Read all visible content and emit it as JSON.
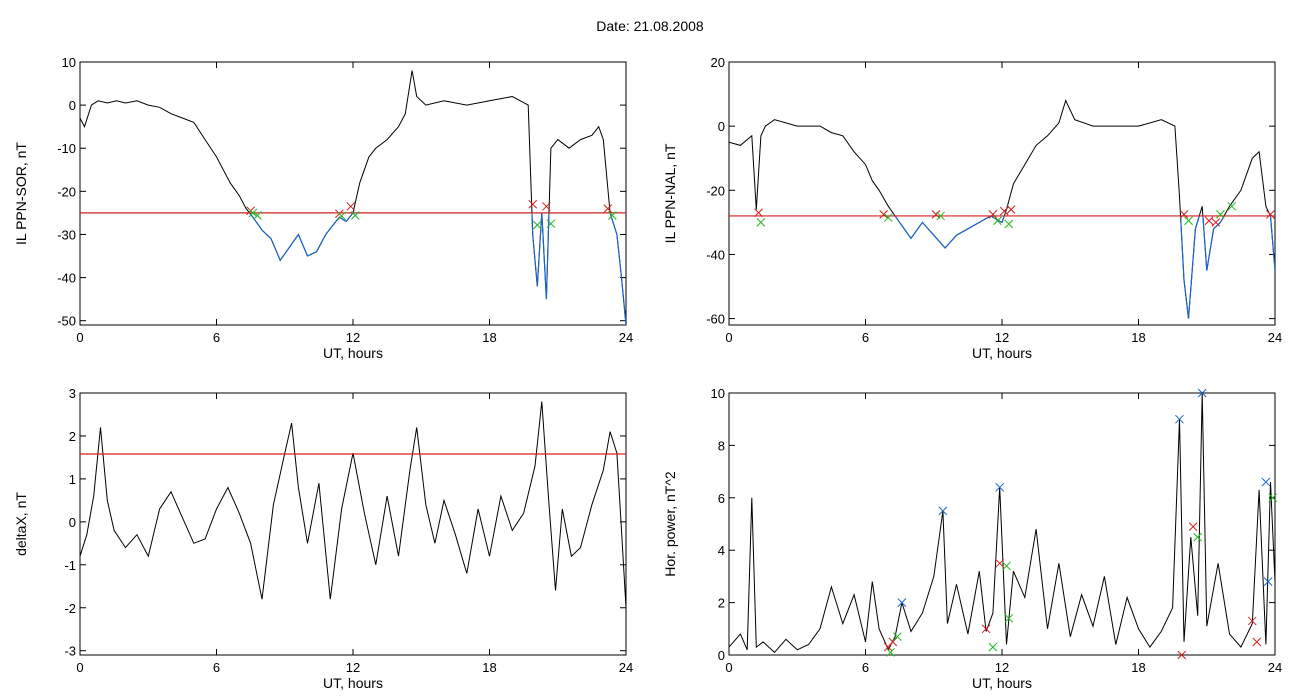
{
  "header": {
    "title": "Date:  21.08.2008"
  },
  "chart_data": [
    {
      "type": "line",
      "xlabel": "UT, hours",
      "ylabel": "IL PPN-SOR, nT",
      "xlim": [
        0,
        24
      ],
      "ylim": [
        -51,
        10
      ],
      "xticks": [
        0,
        6,
        12,
        18,
        24
      ],
      "yticks": [
        10,
        0,
        -10,
        -20,
        -30,
        -40,
        -50
      ],
      "threshold": -25,
      "colors": {
        "line": "#000000",
        "below": "#1a64c8",
        "threshold": "#d42020"
      },
      "x": [
        0,
        0.2,
        0.5,
        0.8,
        1.2,
        1.6,
        2,
        2.5,
        3,
        3.5,
        4,
        4.5,
        5,
        5.5,
        6,
        6.3,
        6.6,
        7,
        7.3,
        7.6,
        8,
        8.4,
        8.8,
        9.2,
        9.6,
        10,
        10.4,
        10.8,
        11.1,
        11.4,
        11.7,
        12,
        12.3,
        12.7,
        13,
        13.5,
        14,
        14.3,
        14.6,
        14.8,
        15.2,
        16,
        17,
        18,
        19,
        19.7,
        19.9,
        20.1,
        20.3,
        20.5,
        20.7,
        21,
        21.5,
        22,
        22.5,
        22.8,
        23,
        23.3,
        23.6,
        23.8,
        24
      ],
      "y": [
        -3,
        -5,
        0,
        1,
        0.5,
        1,
        0.5,
        1,
        0,
        -0.5,
        -2,
        -3,
        -4,
        -8,
        -12,
        -15,
        -18,
        -21,
        -24,
        -26,
        -29,
        -31,
        -36,
        -33,
        -30,
        -35,
        -34,
        -30,
        -28,
        -26,
        -27,
        -25,
        -18,
        -12,
        -10,
        -8,
        -5,
        -2,
        8,
        2,
        0,
        1,
        0,
        1,
        2,
        0,
        -30,
        -42,
        -25,
        -45,
        -10,
        -8,
        -10,
        -8,
        -7,
        -5,
        -8,
        -25,
        -30,
        -40,
        -51
      ],
      "markers_red": [
        [
          7.5,
          -24.5
        ],
        [
          11.4,
          -25.2
        ],
        [
          11.9,
          -23.5
        ],
        [
          19.9,
          -23
        ],
        [
          20.5,
          -23.5
        ],
        [
          23.2,
          -24
        ]
      ],
      "markers_green": [
        [
          7.6,
          -25
        ],
        [
          7.8,
          -25.6
        ],
        [
          11.5,
          -25.7
        ],
        [
          12.1,
          -25.6
        ],
        [
          20.1,
          -27.8
        ],
        [
          20.7,
          -27.5
        ],
        [
          23.4,
          -25.6
        ]
      ]
    },
    {
      "type": "line",
      "xlabel": "UT, hours",
      "ylabel": "IL PPN-NAL, nT",
      "xlim": [
        0,
        24
      ],
      "ylim": [
        -62,
        20
      ],
      "xticks": [
        0,
        6,
        12,
        18,
        24
      ],
      "yticks": [
        20,
        0,
        -20,
        -40,
        -60
      ],
      "threshold": -28,
      "colors": {
        "line": "#000000",
        "below": "#1a64c8",
        "threshold": "#d42020"
      },
      "x": [
        0,
        0.5,
        1,
        1.2,
        1.4,
        1.6,
        2,
        3,
        4,
        4.5,
        5,
        5.5,
        6,
        6.3,
        6.6,
        7,
        7.5,
        8,
        8.5,
        9,
        9.5,
        10,
        10.5,
        11,
        11.5,
        12,
        12.2,
        12.5,
        13,
        13.5,
        14,
        14.5,
        14.8,
        15.2,
        16,
        17,
        18,
        19,
        19.6,
        19.8,
        20,
        20.2,
        20.5,
        20.8,
        21,
        21.3,
        21.6,
        22,
        22.5,
        23,
        23.3,
        23.6,
        23.8,
        24
      ],
      "y": [
        -5,
        -6,
        -3,
        -26,
        -3,
        0,
        2,
        0,
        0,
        -2,
        -3,
        -8,
        -12,
        -17,
        -20,
        -25,
        -30,
        -35,
        -30,
        -34,
        -38,
        -34,
        -32,
        -30,
        -28,
        -30,
        -26,
        -18,
        -12,
        -6,
        -3,
        1,
        8,
        2,
        0,
        0,
        0,
        2,
        0,
        -22,
        -48,
        -60,
        -32,
        -25,
        -45,
        -32,
        -30,
        -25,
        -20,
        -10,
        -8,
        -25,
        -28,
        -45
      ],
      "markers_red": [
        [
          1.3,
          -27
        ],
        [
          6.8,
          -27.5
        ],
        [
          9.1,
          -27.5
        ],
        [
          11.6,
          -27.5
        ],
        [
          12.1,
          -26.5
        ],
        [
          12.4,
          -26
        ],
        [
          20.0,
          -27.5
        ],
        [
          21.1,
          -29.5
        ],
        [
          21.4,
          -30
        ],
        [
          23.8,
          -27.5
        ]
      ],
      "markers_green": [
        [
          1.4,
          -30
        ],
        [
          7.0,
          -28.5
        ],
        [
          9.3,
          -28
        ],
        [
          11.8,
          -29.5
        ],
        [
          12.3,
          -30.5
        ],
        [
          20.2,
          -29.5
        ],
        [
          21.6,
          -27.5
        ],
        [
          22.1,
          -25
        ]
      ]
    },
    {
      "type": "line",
      "xlabel": "UT, hours",
      "ylabel": "deltaX, nT",
      "xlim": [
        0,
        24
      ],
      "ylim": [
        -3.1,
        3
      ],
      "xticks": [
        0,
        6,
        12,
        18,
        24
      ],
      "yticks": [
        3,
        2,
        1,
        0,
        -1,
        -2,
        -3
      ],
      "threshold": 1.58,
      "colors": {
        "line": "#000000",
        "threshold": "#d42020"
      },
      "x": [
        0,
        0.3,
        0.6,
        0.9,
        1.2,
        1.5,
        2,
        2.5,
        3,
        3.5,
        4,
        4.5,
        5,
        5.5,
        6,
        6.5,
        7,
        7.5,
        8,
        8.5,
        9,
        9.3,
        9.6,
        10,
        10.5,
        11,
        11.5,
        12,
        12.5,
        13,
        13.5,
        14,
        14.5,
        14.8,
        15.2,
        15.6,
        16,
        16.5,
        17,
        17.5,
        18,
        18.5,
        19,
        19.5,
        20,
        20.3,
        20.6,
        20.9,
        21.2,
        21.6,
        22,
        22.5,
        23,
        23.3,
        23.6,
        23.8,
        24
      ],
      "y": [
        -0.8,
        -0.3,
        0.6,
        2.2,
        0.5,
        -0.2,
        -0.6,
        -0.3,
        -0.8,
        0.3,
        0.7,
        0.1,
        -0.5,
        -0.4,
        0.3,
        0.8,
        0.2,
        -0.5,
        -1.8,
        0.4,
        1.6,
        2.3,
        0.8,
        -0.5,
        0.9,
        -1.8,
        0.3,
        1.6,
        0.2,
        -1.0,
        0.6,
        -0.8,
        1.2,
        2.2,
        0.4,
        -0.5,
        0.5,
        -0.3,
        -1.2,
        0.3,
        -0.8,
        0.6,
        -0.2,
        0.2,
        1.3,
        2.8,
        0.5,
        -1.6,
        0.3,
        -0.8,
        -0.6,
        0.4,
        1.2,
        2.1,
        1.6,
        -0.2,
        -2.0
      ],
      "markers_red": [],
      "markers_green": []
    },
    {
      "type": "line",
      "xlabel": "UT, hours",
      "ylabel": "Hor. power, nT^2",
      "xlim": [
        0,
        24
      ],
      "ylim": [
        0,
        10
      ],
      "xticks": [
        0,
        6,
        12,
        18,
        24
      ],
      "yticks": [
        10,
        8,
        6,
        4,
        2,
        0
      ],
      "colors": {
        "line": "#000000",
        "markers_blue": "#1a64c8"
      },
      "x": [
        0,
        0.5,
        0.8,
        1.0,
        1.2,
        1.5,
        2,
        2.5,
        3,
        3.5,
        4,
        4.5,
        5,
        5.5,
        6,
        6.3,
        6.6,
        7,
        7.3,
        7.6,
        8,
        8.5,
        9,
        9.4,
        9.6,
        10,
        10.5,
        11,
        11.3,
        11.6,
        11.9,
        12.2,
        12.5,
        13,
        13.5,
        14,
        14.5,
        15,
        15.5,
        16,
        16.5,
        17,
        17.5,
        18,
        18.5,
        19,
        19.5,
        19.8,
        20.0,
        20.3,
        20.6,
        20.8,
        21,
        21.5,
        22,
        22.5,
        23,
        23.3,
        23.6,
        23.8,
        24
      ],
      "y": [
        0.3,
        0.8,
        0.2,
        6.0,
        0.3,
        0.5,
        0.1,
        0.6,
        0.2,
        0.4,
        1.0,
        2.6,
        1.2,
        2.3,
        0.5,
        2.8,
        1.0,
        0.2,
        0.7,
        2.0,
        0.9,
        1.6,
        3.0,
        5.5,
        1.2,
        2.7,
        0.8,
        3.2,
        0.9,
        1.6,
        6.4,
        0.4,
        3.2,
        2.2,
        4.8,
        1.0,
        3.5,
        0.7,
        2.3,
        1.1,
        3.0,
        0.4,
        2.2,
        1.0,
        0.3,
        0.9,
        1.8,
        9.0,
        0.5,
        4.5,
        1.5,
        10.0,
        1.1,
        3.5,
        0.8,
        0.3,
        1.2,
        6.3,
        0.4,
        6.6,
        2.8
      ],
      "markers_blue": [
        [
          7.6,
          2.0
        ],
        [
          9.4,
          5.5
        ],
        [
          11.9,
          6.4
        ],
        [
          19.8,
          9.0
        ],
        [
          20.8,
          10.0
        ],
        [
          23.6,
          6.6
        ],
        [
          23.7,
          2.8
        ]
      ],
      "markers_red": [
        [
          7.0,
          0.3
        ],
        [
          7.2,
          0.5
        ],
        [
          11.3,
          1.0
        ],
        [
          11.9,
          3.5
        ],
        [
          19.9,
          0.0
        ],
        [
          20.4,
          4.9
        ],
        [
          23.0,
          1.3
        ],
        [
          23.2,
          0.5
        ]
      ],
      "markers_green": [
        [
          7.1,
          0.1
        ],
        [
          7.4,
          0.7
        ],
        [
          11.6,
          0.3
        ],
        [
          12.2,
          3.4
        ],
        [
          12.3,
          1.4
        ],
        [
          20.6,
          4.5
        ],
        [
          23.9,
          6.0
        ]
      ]
    }
  ]
}
